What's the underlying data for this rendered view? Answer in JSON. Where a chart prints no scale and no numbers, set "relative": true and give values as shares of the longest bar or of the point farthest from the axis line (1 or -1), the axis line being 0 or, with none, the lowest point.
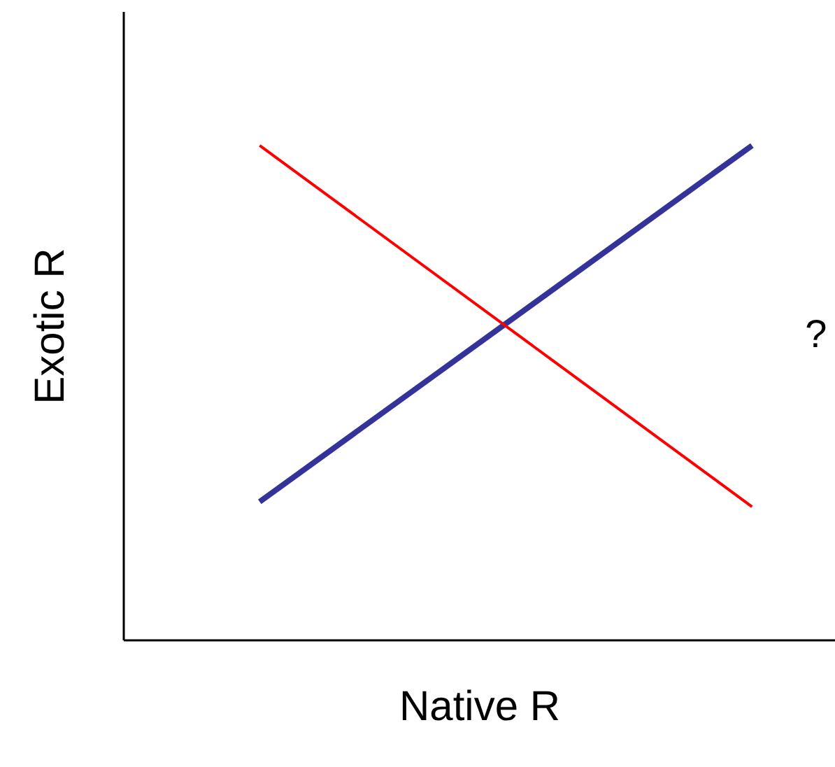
{
  "chart_data": {
    "type": "line",
    "xlabel": "Native R",
    "ylabel": "Exotic R",
    "categories": [
      null,
      null
    ],
    "relative": true,
    "grid": false,
    "tick_labels": false,
    "series": [
      {
        "color": "#333399",
        "values": [
          0.28,
          1.0
        ]
      },
      {
        "color": "#ff0000",
        "values": [
          1.0,
          0.27
        ]
      }
    ],
    "annotations": [
      "?"
    ]
  }
}
